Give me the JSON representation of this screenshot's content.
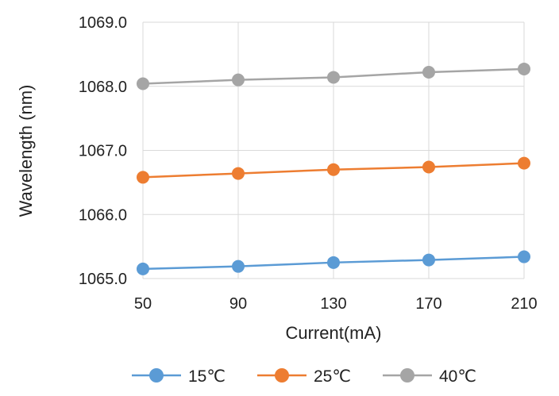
{
  "chart_data": {
    "type": "line",
    "title": "",
    "xlabel": "Current(mA)",
    "ylabel": "Wavelength (nm)",
    "categories": [
      "50",
      "90",
      "130",
      "170",
      "210"
    ],
    "ylim": [
      1065.0,
      1069.0
    ],
    "yticks": [
      "1065.0",
      "1066.0",
      "1067.0",
      "1068.0",
      "1069.0"
    ],
    "grid": true,
    "legend_position": "bottom",
    "series": [
      {
        "name": "15℃",
        "color": "#5B9BD5",
        "values": [
          1065.15,
          1065.19,
          1065.25,
          1065.29,
          1065.34
        ]
      },
      {
        "name": "25℃",
        "color": "#ED7D31",
        "values": [
          1066.58,
          1066.64,
          1066.7,
          1066.74,
          1066.8
        ]
      },
      {
        "name": "40℃",
        "color": "#A5A5A5",
        "values": [
          1068.04,
          1068.1,
          1068.14,
          1068.22,
          1068.27
        ]
      }
    ]
  }
}
